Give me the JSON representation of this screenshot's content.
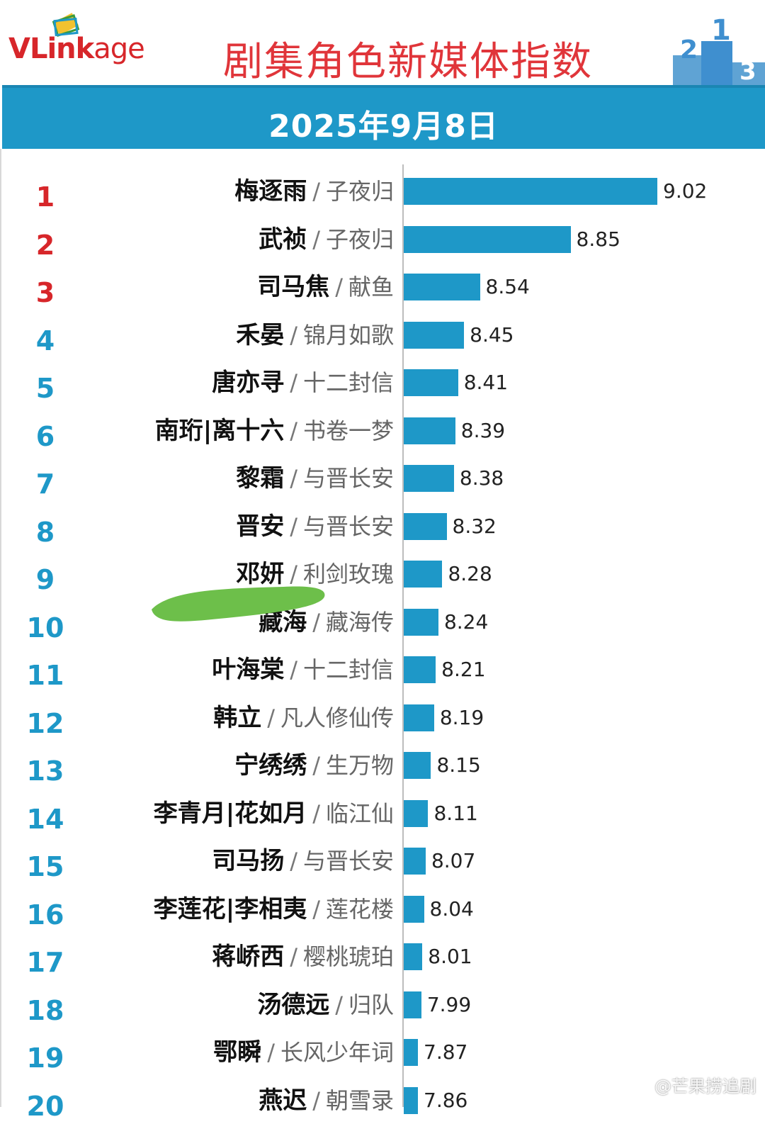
{
  "header": {
    "logo_text": "VLinkage",
    "title": "剧集角色新媒体指数",
    "podium_icon": "podium-icon",
    "date": "2025年9月8日"
  },
  "colors": {
    "bar": "#1e98c8",
    "title": "#e0353a",
    "rank_top3": "#d7262a",
    "rank_rest": "#1e98c8",
    "header_band": "#1e98c8"
  },
  "watermark": "@芒果捞追剧",
  "chart_data": {
    "type": "bar",
    "orientation": "horizontal",
    "title": "剧集角色新媒体指数",
    "subtitle": "2025年9月8日",
    "xlabel": "",
    "ylabel": "",
    "xlim": [
      0,
      9.02
    ],
    "grid": false,
    "legend": "none",
    "ranks": [
      "1",
      "2",
      "3",
      "4",
      "5",
      "6",
      "7",
      "8",
      "9",
      "10",
      "11",
      "12",
      "13",
      "14",
      "15",
      "16",
      "17",
      "18",
      "19",
      "20"
    ],
    "categories": [
      "梅逐雨",
      "武祯",
      "司马焦",
      "禾晏",
      "唐亦寻",
      "南珩|离十六",
      "黎霜",
      "晋安",
      "邓妍",
      "藏海",
      "叶海棠",
      "韩立",
      "宁绣绣",
      "李青月|花如月",
      "司马扬",
      "李莲花|李相夷",
      "蒋峤西",
      "汤德远",
      "鄂瞬",
      "燕迟"
    ],
    "shows": [
      "子夜归",
      "子夜归",
      "献鱼",
      "锦月如歌",
      "十二封信",
      "书卷一梦",
      "与晋长安",
      "与晋长安",
      "利剑玫瑰",
      "藏海传",
      "十二封信",
      "凡人修仙传",
      "生万物",
      "临江仙",
      "与晋长安",
      "莲花楼",
      "樱桃琥珀",
      "归队",
      "长风少年词",
      "朝雪录"
    ],
    "separator": "/",
    "values": [
      9.02,
      8.85,
      8.54,
      8.45,
      8.41,
      8.39,
      8.38,
      8.32,
      8.28,
      8.24,
      8.21,
      8.19,
      8.15,
      8.11,
      8.07,
      8.04,
      8.01,
      7.99,
      7.87,
      7.86
    ],
    "value_labels": [
      "9.02",
      "8.85",
      "8.54",
      "8.45",
      "8.41",
      "8.39",
      "8.38",
      "8.32",
      "8.28",
      "8.24",
      "8.21",
      "8.19",
      "8.15",
      "8.11",
      "8.07",
      "8.04",
      "8.01",
      "7.99",
      "7.87",
      "7.86"
    ]
  }
}
